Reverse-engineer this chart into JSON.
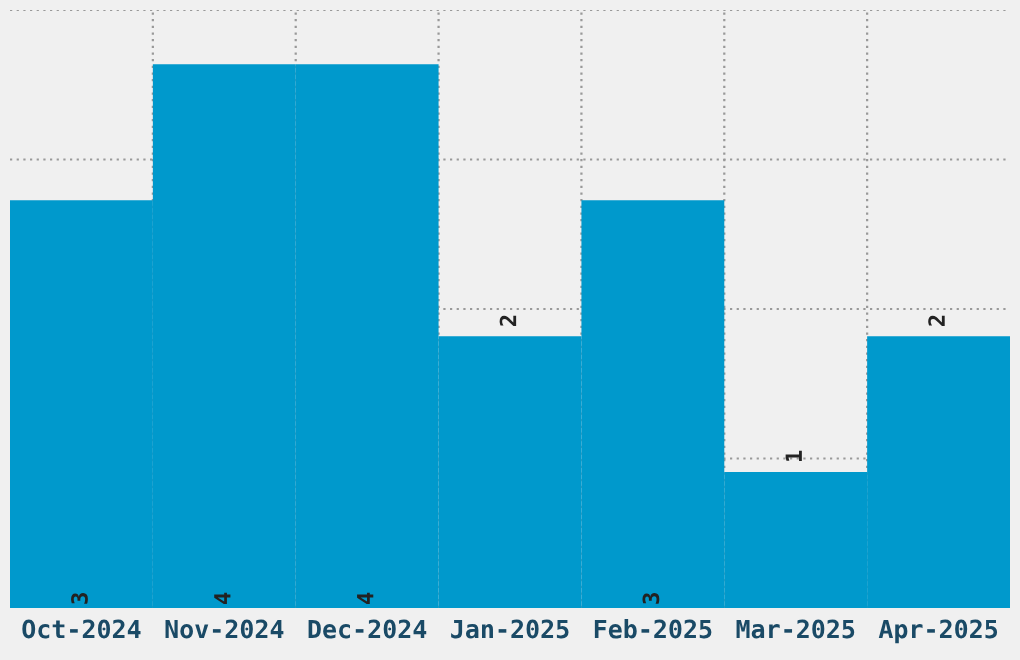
{
  "chart_data": {
    "type": "bar",
    "categories": [
      "Oct-2024",
      "Nov-2024",
      "Dec-2024",
      "Jan-2025",
      "Feb-2025",
      "Mar-2025",
      "Apr-2025"
    ],
    "values": [
      3,
      4,
      4,
      2,
      3,
      1,
      2
    ],
    "color": "#0099cc",
    "tick_labels": "x",
    "grid": true,
    "data_labels": true
  }
}
